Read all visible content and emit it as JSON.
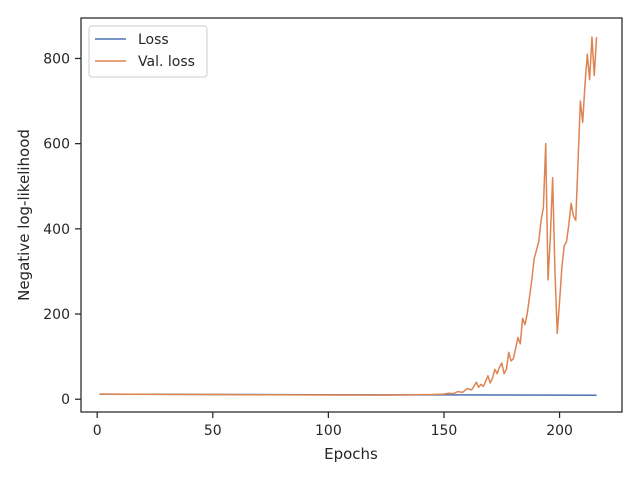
{
  "chart_data": {
    "type": "line",
    "xlabel": "Epochs",
    "ylabel": "Negative log-likelihood",
    "xlim": [
      -7,
      227
    ],
    "ylim": [
      -30,
      895
    ],
    "x_ticks": [
      0,
      50,
      100,
      150,
      200
    ],
    "y_ticks": [
      0,
      200,
      400,
      600,
      800
    ],
    "grid": false,
    "legend": "top-left",
    "series": [
      {
        "name": "Loss",
        "color": "#4c72b0",
        "x": [
          1,
          25,
          50,
          75,
          100,
          125,
          150,
          175,
          200,
          216
        ],
        "y": [
          12,
          11.6,
          11.2,
          10.9,
          10.6,
          10.3,
          10.1,
          9.9,
          9.6,
          9.4
        ]
      },
      {
        "name": "Val. loss",
        "color": "#dd8452",
        "x": [
          1,
          25,
          50,
          75,
          100,
          125,
          145,
          150,
          152,
          154,
          156,
          158,
          160,
          162,
          164,
          165,
          166,
          167,
          168,
          169,
          170,
          171,
          172,
          173,
          174,
          175,
          176,
          177,
          178,
          179,
          180,
          181,
          182,
          183,
          184,
          185,
          186,
          187,
          188,
          189,
          190,
          191,
          192,
          193,
          194,
          195,
          196,
          197,
          198,
          199,
          200,
          201,
          202,
          203,
          204,
          205,
          206,
          207,
          208,
          209,
          210,
          211,
          212,
          213,
          214,
          215,
          216
        ],
        "y": [
          12,
          11.5,
          11,
          10.5,
          10,
          9.5,
          11,
          12,
          14,
          13,
          18,
          16,
          25,
          22,
          40,
          28,
          35,
          30,
          42,
          55,
          38,
          50,
          70,
          60,
          75,
          85,
          60,
          70,
          110,
          90,
          95,
          120,
          145,
          130,
          190,
          175,
          200,
          240,
          280,
          330,
          350,
          370,
          420,
          450,
          600,
          280,
          380,
          520,
          300,
          155,
          230,
          310,
          360,
          370,
          410,
          460,
          430,
          420,
          560,
          700,
          650,
          740,
          810,
          750,
          850,
          760,
          850
        ]
      }
    ]
  }
}
